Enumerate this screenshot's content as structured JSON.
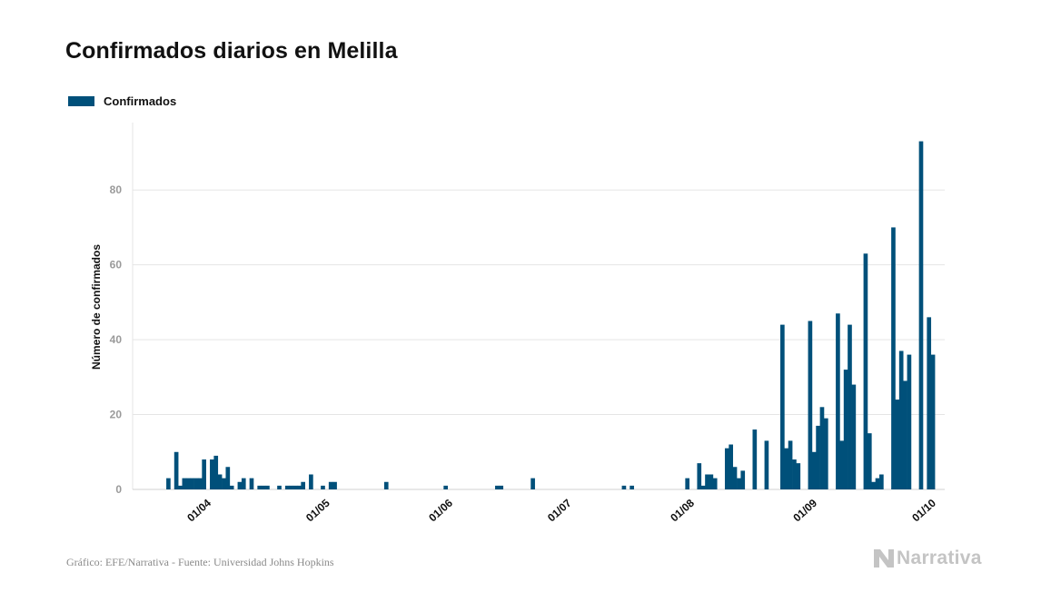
{
  "colors": {
    "bar": "#00507a",
    "grid": "#e5e5e5",
    "tick": "#9a9a9a",
    "text": "#111111"
  },
  "chart_data": {
    "type": "bar",
    "title": "Confirmados diarios en Melilla",
    "ylabel": "Número de confirmados",
    "xlabel": "",
    "legend": "top-left",
    "grid": true,
    "ylim": [
      0,
      98
    ],
    "yticks": [
      0,
      20,
      40,
      60,
      80
    ],
    "x_start": "2020-03-13",
    "x_end": "2020-10-04",
    "xticks": [
      {
        "date": "2020-04-01",
        "label": "01/04"
      },
      {
        "date": "2020-05-01",
        "label": "01/05"
      },
      {
        "date": "2020-06-01",
        "label": "01/06"
      },
      {
        "date": "2020-07-01",
        "label": "01/07"
      },
      {
        "date": "2020-08-01",
        "label": "01/08"
      },
      {
        "date": "2020-09-01",
        "label": "01/09"
      },
      {
        "date": "2020-10-01",
        "label": "01/10"
      }
    ],
    "series": [
      {
        "name": "Confirmados",
        "points": [
          [
            "2020-03-22",
            3
          ],
          [
            "2020-03-24",
            10
          ],
          [
            "2020-03-25",
            1
          ],
          [
            "2020-03-26",
            3
          ],
          [
            "2020-03-27",
            3
          ],
          [
            "2020-03-28",
            3
          ],
          [
            "2020-03-29",
            3
          ],
          [
            "2020-03-30",
            3
          ],
          [
            "2020-03-31",
            8
          ],
          [
            "2020-04-02",
            8
          ],
          [
            "2020-04-03",
            9
          ],
          [
            "2020-04-04",
            4
          ],
          [
            "2020-04-05",
            3
          ],
          [
            "2020-04-06",
            6
          ],
          [
            "2020-04-07",
            1
          ],
          [
            "2020-04-09",
            2
          ],
          [
            "2020-04-10",
            3
          ],
          [
            "2020-04-12",
            3
          ],
          [
            "2020-04-14",
            1
          ],
          [
            "2020-04-15",
            1
          ],
          [
            "2020-04-16",
            1
          ],
          [
            "2020-04-19",
            1
          ],
          [
            "2020-04-21",
            1
          ],
          [
            "2020-04-22",
            1
          ],
          [
            "2020-04-23",
            1
          ],
          [
            "2020-04-24",
            1
          ],
          [
            "2020-04-25",
            2
          ],
          [
            "2020-04-27",
            4
          ],
          [
            "2020-04-30",
            1
          ],
          [
            "2020-05-02",
            2
          ],
          [
            "2020-05-03",
            2
          ],
          [
            "2020-05-16",
            2
          ],
          [
            "2020-05-31",
            1
          ],
          [
            "2020-06-13",
            1
          ],
          [
            "2020-06-14",
            1
          ],
          [
            "2020-06-22",
            3
          ],
          [
            "2020-07-15",
            1
          ],
          [
            "2020-07-17",
            1
          ],
          [
            "2020-07-31",
            3
          ],
          [
            "2020-08-03",
            7
          ],
          [
            "2020-08-04",
            1
          ],
          [
            "2020-08-05",
            4
          ],
          [
            "2020-08-06",
            4
          ],
          [
            "2020-08-07",
            3
          ],
          [
            "2020-08-10",
            11
          ],
          [
            "2020-08-11",
            12
          ],
          [
            "2020-08-12",
            6
          ],
          [
            "2020-08-13",
            3
          ],
          [
            "2020-08-14",
            5
          ],
          [
            "2020-08-17",
            16
          ],
          [
            "2020-08-20",
            13
          ],
          [
            "2020-08-24",
            44
          ],
          [
            "2020-08-25",
            11
          ],
          [
            "2020-08-26",
            13
          ],
          [
            "2020-08-27",
            8
          ],
          [
            "2020-08-28",
            7
          ],
          [
            "2020-08-31",
            45
          ],
          [
            "2020-09-01",
            10
          ],
          [
            "2020-09-02",
            17
          ],
          [
            "2020-09-03",
            22
          ],
          [
            "2020-09-04",
            19
          ],
          [
            "2020-09-07",
            47
          ],
          [
            "2020-09-08",
            13
          ],
          [
            "2020-09-09",
            32
          ],
          [
            "2020-09-10",
            44
          ],
          [
            "2020-09-11",
            28
          ],
          [
            "2020-09-14",
            63
          ],
          [
            "2020-09-15",
            15
          ],
          [
            "2020-09-16",
            2
          ],
          [
            "2020-09-17",
            3
          ],
          [
            "2020-09-18",
            4
          ],
          [
            "2020-09-21",
            70
          ],
          [
            "2020-09-22",
            24
          ],
          [
            "2020-09-23",
            37
          ],
          [
            "2020-09-24",
            29
          ],
          [
            "2020-09-25",
            36
          ],
          [
            "2020-09-28",
            93
          ],
          [
            "2020-09-30",
            46
          ],
          [
            "2020-10-01",
            36
          ]
        ]
      }
    ]
  },
  "footer": {
    "source": "Gráfico: EFE/Narrativa - Fuente: Universidad Johns Hopkins",
    "logo_text": "Narrativa"
  }
}
